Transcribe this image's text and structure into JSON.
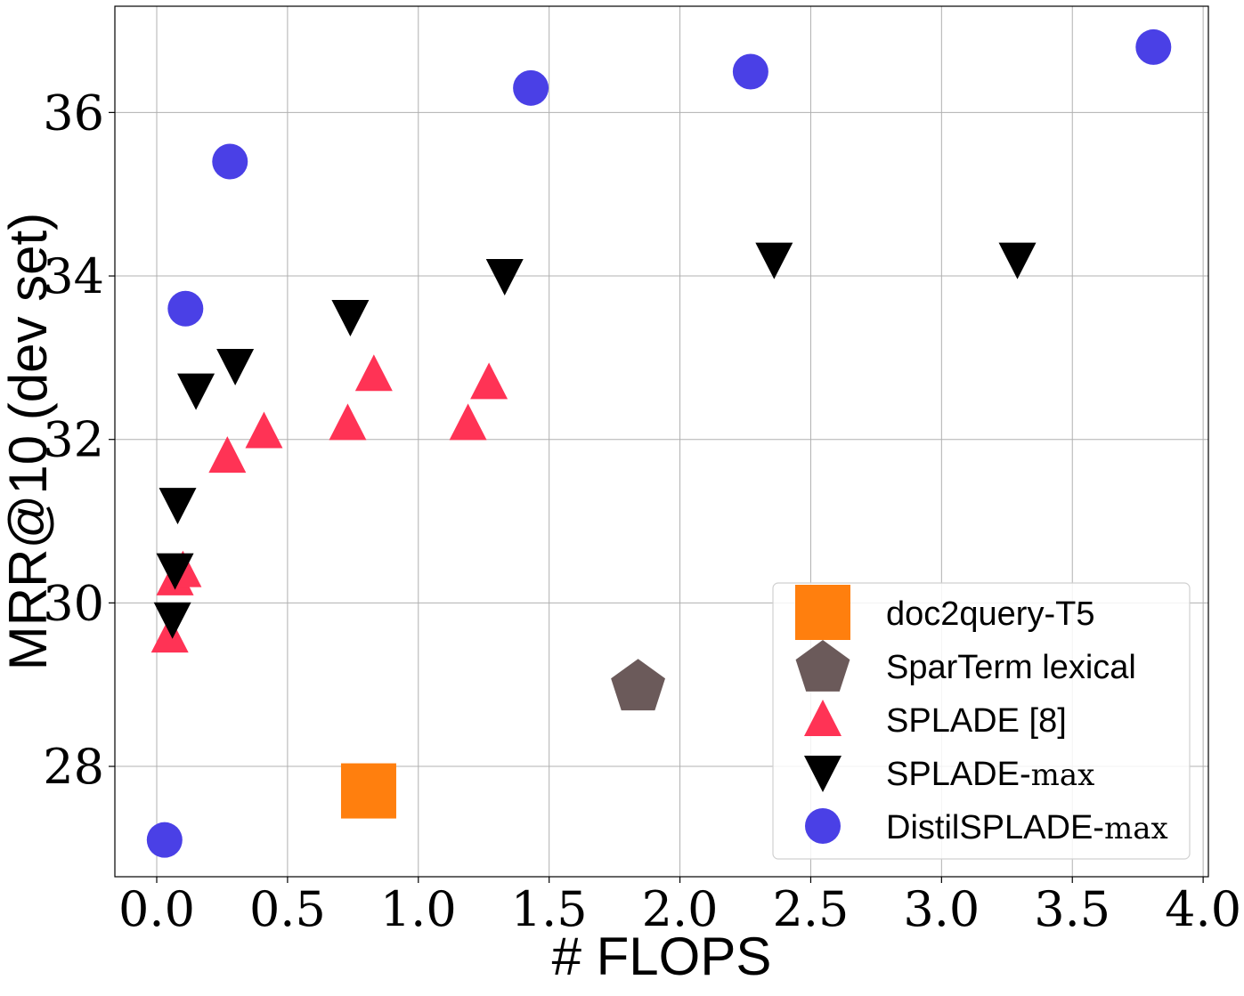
{
  "chart_data": {
    "type": "scatter",
    "title": "",
    "xlabel": "# FLOPS",
    "ylabel": "MRR@10 (dev set)",
    "xlim": [
      -0.16,
      4.02
    ],
    "ylim": [
      26.65,
      37.3
    ],
    "xticks": [
      0.0,
      0.5,
      1.0,
      1.5,
      2.0,
      2.5,
      3.0,
      3.5,
      4.0
    ],
    "xtick_labels": [
      "0.0",
      "0.5",
      "1.0",
      "1.5",
      "2.0",
      "2.5",
      "3.0",
      "3.5",
      "4.0"
    ],
    "yticks": [
      28,
      30,
      32,
      34,
      36
    ],
    "ytick_labels": [
      "28",
      "30",
      "32",
      "34",
      "36"
    ],
    "grid": true,
    "legend_position": "bottom-right",
    "series": [
      {
        "name": "doc2query-T5",
        "name_suffix": "",
        "marker": "square",
        "color": "#ff7f0e",
        "x": [
          0.81
        ],
        "y": [
          27.7
        ]
      },
      {
        "name": "SparTerm lexical",
        "name_suffix": "",
        "marker": "pentagon",
        "color": "#6b5a5a",
        "x": [
          1.84
        ],
        "y": [
          29.0
        ]
      },
      {
        "name": "SPLADE [8]",
        "name_suffix": "",
        "marker": "triangle-up",
        "color": "#ff3355",
        "x": [
          0.05,
          0.07,
          0.1,
          0.27,
          0.41,
          0.73,
          0.83,
          1.19,
          1.27
        ],
        "y": [
          29.6,
          30.3,
          30.4,
          31.8,
          32.1,
          32.2,
          32.8,
          32.2,
          32.7
        ]
      },
      {
        "name": "SPLADE-",
        "name_suffix": "max",
        "marker": "triangle-down",
        "color": "#000000",
        "x": [
          0.06,
          0.07,
          0.08,
          0.15,
          0.3,
          0.74,
          1.33,
          2.36,
          3.29
        ],
        "y": [
          29.8,
          30.4,
          31.2,
          32.6,
          32.9,
          33.5,
          34.0,
          34.2,
          34.2
        ]
      },
      {
        "name": "DistilSPLADE-",
        "name_suffix": "max",
        "marker": "circle",
        "color": "#4a40e6",
        "x": [
          0.03,
          0.11,
          0.28,
          1.43,
          2.27,
          3.81
        ],
        "y": [
          27.1,
          33.6,
          35.4,
          36.3,
          36.5,
          36.8
        ]
      }
    ]
  }
}
